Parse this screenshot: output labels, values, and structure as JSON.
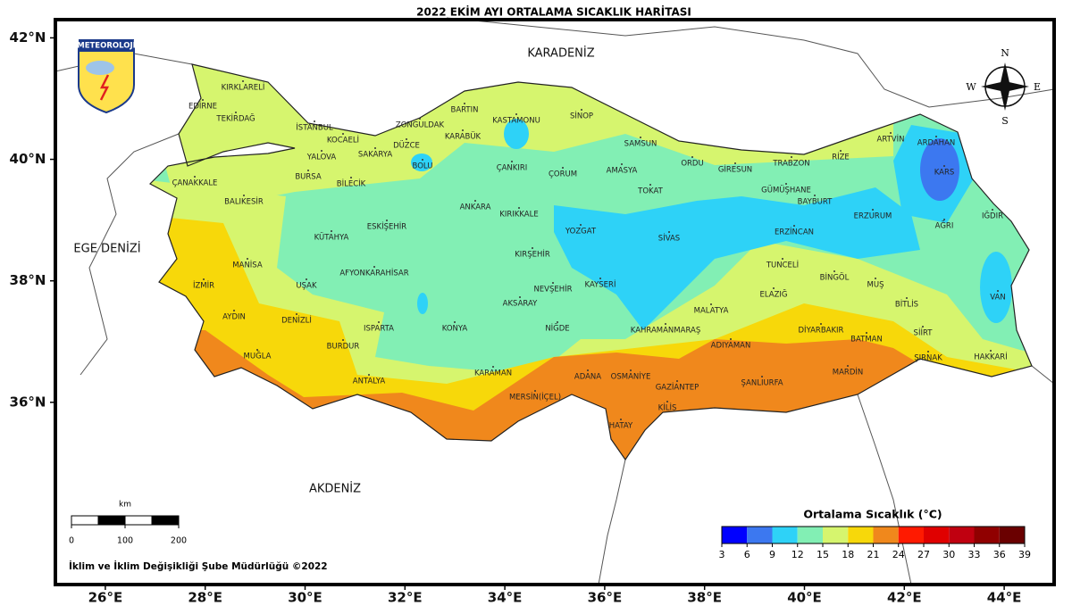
{
  "title": "2022 EKİM AYI ORTALAMA SICAKLIK HARİTASI",
  "logo": "METEOROLOJİ",
  "compass": [
    "N",
    "E",
    "S",
    "W"
  ],
  "seas": [
    "KARADENİZ",
    "EGE DENİZİ",
    "AKDENİZ"
  ],
  "lon_range": [
    25,
    45
  ],
  "lat_range": [
    33,
    42.3
  ],
  "lat_ticks": [
    {
      "value": 42,
      "label": "42°N"
    },
    {
      "value": 40,
      "label": "40°N"
    },
    {
      "value": 38,
      "label": "38°N"
    },
    {
      "value": 36,
      "label": "36°N"
    }
  ],
  "lon_ticks": [
    {
      "value": 26,
      "label": "26°E"
    },
    {
      "value": 28,
      "label": "28°E"
    },
    {
      "value": 30,
      "label": "30°E"
    },
    {
      "value": 32,
      "label": "32°E"
    },
    {
      "value": 34,
      "label": "34°E"
    },
    {
      "value": 36,
      "label": "36°E"
    },
    {
      "value": 38,
      "label": "38°E"
    },
    {
      "value": 40,
      "label": "40°E"
    },
    {
      "value": 42,
      "label": "42°E"
    },
    {
      "value": 44,
      "label": "44°E"
    }
  ],
  "provinces": [
    "KIRKLARELİ",
    "EDİRNE",
    "TEKİRDAĞ",
    "İSTANBUL",
    "KOCAELİ",
    "YALOVA",
    "SAKARYA",
    "DÜZCE",
    "ZONGULDAK",
    "BARTIN",
    "KARABÜK",
    "KASTAMONU",
    "SİNOP",
    "SAMSUN",
    "BOLU",
    "ÇANKIRI",
    "ÇORUM",
    "AMASYA",
    "ORDU",
    "GİRESUN",
    "TRABZON",
    "RİZE",
    "ARTVİN",
    "ARDAHAN",
    "KARS",
    "BURSA",
    "BİLECİK",
    "ÇANAKKALE",
    "BALIKESİR",
    "ANKARA",
    "KIRIKKALE",
    "TOKAT",
    "GÜMÜŞHANE",
    "BAYBURT",
    "ERZURUM",
    "IĞDIR",
    "AĞRI",
    "ESKİŞEHİR",
    "KÜTAHYA",
    "YOZGAT",
    "SİVAS",
    "ERZİNCAN",
    "KIRŞEHİR",
    "MANİSA",
    "AFYONKARAHİSAR",
    "TUNCELİ",
    "İZMİR",
    "UŞAK",
    "NEVŞEHİR",
    "KAYSERİ",
    "BİNGÖL",
    "MUŞ",
    "VAN",
    "ELAZIĞ",
    "AKSARAY",
    "BİTLİS",
    "AYDIN",
    "DENİZLİ",
    "MALATYA",
    "KONYA",
    "ISPARTA",
    "NİĞDE",
    "KAHRAMANMARAŞ",
    "DİYARBAKIR",
    "SİİRT",
    "BATMAN",
    "ADIYAMAN",
    "BURDUR",
    "MUĞLA",
    "HAKKARİ",
    "ŞIRNAK",
    "MARDİN",
    "KARAMAN",
    "ADANA",
    "OSMANİYE",
    "ŞANLIURFA",
    "ANTALYA",
    "GAZİANTEP",
    "MERSİN(İÇEL)",
    "KİLİS",
    "HATAY"
  ],
  "legend": {
    "title": "Ortalama Sıcaklık (°C)",
    "ticks": [
      3,
      6,
      9,
      12,
      15,
      18,
      21,
      24,
      27,
      30,
      33,
      36,
      39
    ],
    "colors": [
      "#0000ff",
      "#3c78f0",
      "#2ed2f7",
      "#82efb4",
      "#d6f56e",
      "#f7d80a",
      "#f0881c",
      "#ff1a00",
      "#e00000",
      "#c00010",
      "#900000",
      "#6a0000"
    ]
  },
  "scale_bar": {
    "unit": "km",
    "ticks": [
      0,
      100,
      200
    ]
  },
  "footer": "İklim ve İklim Değişikliği Şube Müdürlüğü ©2022"
}
